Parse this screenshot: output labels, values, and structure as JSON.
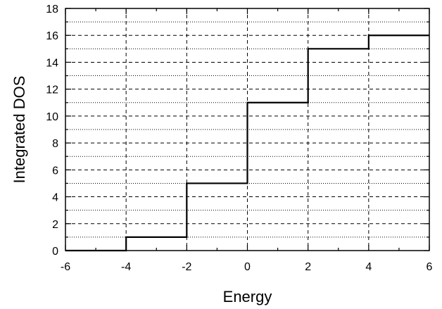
{
  "chart_data": {
    "type": "line",
    "xlabel": "Energy",
    "ylabel": "Integrated DOS",
    "xlim": [
      -6,
      6
    ],
    "ylim": [
      0,
      18
    ],
    "xticks": [
      -6,
      -4,
      -2,
      0,
      2,
      4,
      6
    ],
    "yticks": [
      0,
      2,
      4,
      6,
      8,
      10,
      12,
      14,
      16,
      18
    ],
    "grid": true,
    "series": [
      {
        "x": [
          -6,
          -4,
          -4,
          -2,
          -2,
          0,
          0,
          2,
          2,
          4,
          4,
          6
        ],
        "y": [
          0,
          0,
          1,
          1,
          5,
          5,
          11,
          11,
          15,
          15,
          16,
          16
        ]
      }
    ]
  }
}
